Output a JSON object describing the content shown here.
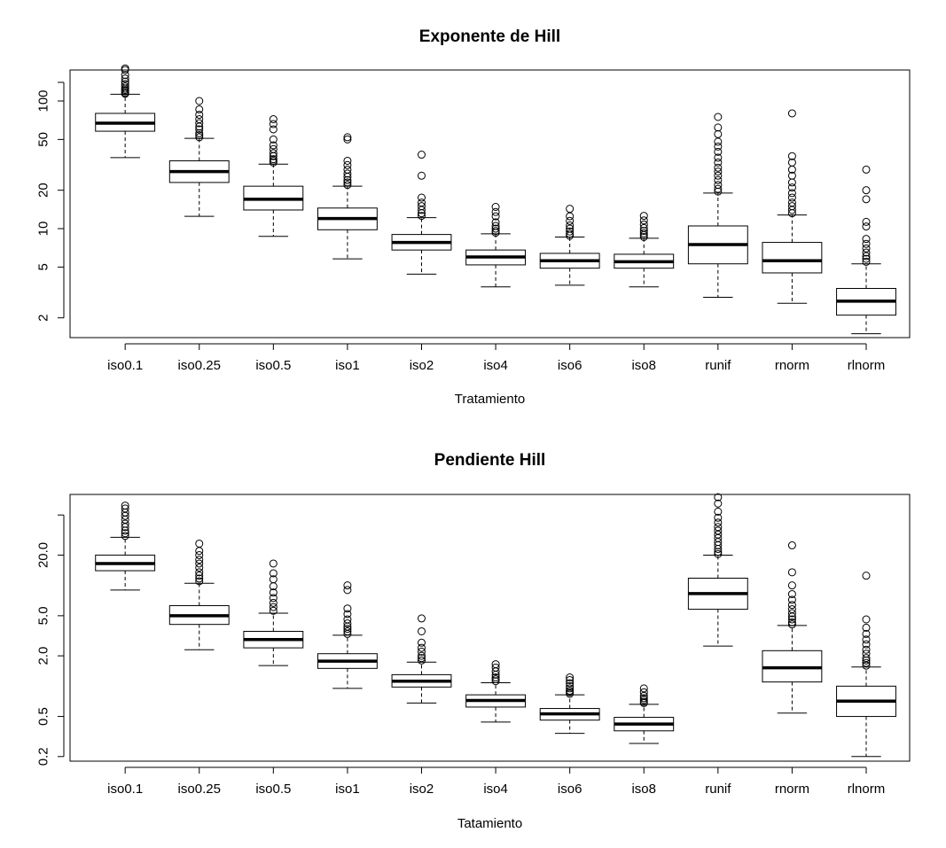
{
  "chart_data": [
    {
      "type": "boxplot",
      "title": "Exponente de Hill",
      "xlabel": "Tratamiento",
      "ylabel": "",
      "y_scale": "log",
      "ylim": [
        1.4,
        175
      ],
      "y_ticks": [
        2,
        5,
        10,
        20,
        50,
        100
      ],
      "categories": [
        "iso0.1",
        "iso0.25",
        "iso0.5",
        "iso1",
        "iso2",
        "iso4",
        "iso6",
        "iso8",
        "runif",
        "rnorm",
        "rlnorm"
      ],
      "boxes": [
        {
          "min": 36,
          "q1": 58,
          "median": 67,
          "q3": 80,
          "max": 113,
          "outliers": [
            114,
            116,
            119,
            122,
            125,
            130,
            136,
            142,
            150,
            160,
            175,
            180
          ]
        },
        {
          "min": 12.5,
          "q1": 23,
          "median": 28,
          "q3": 34,
          "max": 51,
          "outliers": [
            52,
            54,
            56,
            60,
            63,
            67,
            72,
            78,
            86,
            100
          ]
        },
        {
          "min": 8.7,
          "q1": 14,
          "median": 17,
          "q3": 21.5,
          "max": 32,
          "outliers": [
            33,
            34,
            35,
            37,
            39,
            42,
            45,
            50,
            60,
            66,
            72
          ]
        },
        {
          "min": 5.8,
          "q1": 9.8,
          "median": 12,
          "q3": 14.5,
          "max": 21.5,
          "outliers": [
            22,
            23,
            24,
            25.5,
            27,
            29,
            31.5,
            34,
            50,
            52
          ]
        },
        {
          "min": 4.4,
          "q1": 6.8,
          "median": 7.8,
          "q3": 9.0,
          "max": 12.2,
          "outliers": [
            12.6,
            13.2,
            14,
            15,
            16,
            17.5,
            26,
            38
          ]
        },
        {
          "min": 3.5,
          "q1": 5.2,
          "median": 6.0,
          "q3": 6.8,
          "max": 9.1,
          "outliers": [
            9.3,
            9.6,
            10,
            10.5,
            11.2,
            12.5,
            13.5,
            14.8
          ]
        },
        {
          "min": 3.6,
          "q1": 4.9,
          "median": 5.6,
          "q3": 6.4,
          "max": 8.6,
          "outliers": [
            8.8,
            9.1,
            9.5,
            10,
            10.6,
            11.5,
            12.5,
            14.3
          ]
        },
        {
          "min": 3.5,
          "q1": 4.9,
          "median": 5.5,
          "q3": 6.3,
          "max": 8.4,
          "outliers": [
            8.6,
            8.9,
            9.2,
            9.6,
            10.1,
            10.8,
            11.6,
            12.6
          ]
        },
        {
          "min": 2.9,
          "q1": 5.3,
          "median": 7.5,
          "q3": 10.5,
          "max": 19,
          "outliers": [
            19.5,
            20.5,
            22,
            24,
            26,
            28,
            30,
            33,
            36,
            40,
            44,
            48,
            55,
            62,
            75
          ]
        },
        {
          "min": 2.6,
          "q1": 4.5,
          "median": 5.6,
          "q3": 7.8,
          "max": 12.8,
          "outliers": [
            13.2,
            14,
            15,
            16,
            17.5,
            19,
            21,
            23,
            26,
            29,
            33,
            37,
            80
          ]
        },
        {
          "min": 1.5,
          "q1": 2.1,
          "median": 2.7,
          "q3": 3.4,
          "max": 5.3,
          "outliers": [
            5.5,
            5.8,
            6.1,
            6.5,
            7.0,
            7.6,
            8.3,
            10.4,
            11.3,
            17,
            20,
            29
          ]
        }
      ]
    },
    {
      "type": "boxplot",
      "title": "Pendiente Hill",
      "xlabel": "Tatamiento",
      "ylabel": "",
      "y_scale": "log",
      "ylim": [
        0.18,
        80
      ],
      "y_ticks": [
        0.2,
        0.5,
        2.0,
        5.0,
        20.0
      ],
      "y_tick_labels": [
        "0.2",
        "0.5",
        "2.0",
        "5.0",
        "20.0"
      ],
      "categories": [
        "iso0.1",
        "iso0.25",
        "iso0.5",
        "iso1",
        "iso2",
        "iso4",
        "iso6",
        "iso8",
        "runif",
        "rnorm",
        "rlnorm"
      ],
      "boxes": [
        {
          "min": 9.0,
          "q1": 14,
          "median": 16.5,
          "q3": 20,
          "max": 30,
          "outliers": [
            31,
            33,
            35,
            38,
            41,
            45,
            49,
            53,
            58,
            62
          ]
        },
        {
          "min": 2.3,
          "q1": 4.1,
          "median": 5.0,
          "q3": 6.3,
          "max": 10.5,
          "outliers": [
            11,
            11.7,
            12.5,
            13.5,
            15,
            16.5,
            18,
            20,
            22,
            26
          ]
        },
        {
          "min": 1.6,
          "q1": 2.4,
          "median": 2.9,
          "q3": 3.5,
          "max": 5.3,
          "outliers": [
            5.6,
            6.1,
            6.7,
            7.5,
            8.5,
            9.8,
            11.5,
            13.2,
            16.5
          ]
        },
        {
          "min": 0.95,
          "q1": 1.5,
          "median": 1.77,
          "q3": 2.1,
          "max": 3.2,
          "outliers": [
            3.3,
            3.5,
            3.7,
            3.9,
            4.2,
            4.6,
            5.2,
            5.9,
            9,
            10
          ]
        },
        {
          "min": 0.68,
          "q1": 0.98,
          "median": 1.12,
          "q3": 1.3,
          "max": 1.73,
          "outliers": [
            1.8,
            1.9,
            2.0,
            2.2,
            2.4,
            2.7,
            3.5,
            4.7
          ]
        },
        {
          "min": 0.44,
          "q1": 0.62,
          "median": 0.72,
          "q3": 0.82,
          "max": 1.08,
          "outliers": [
            1.12,
            1.17,
            1.22,
            1.3,
            1.4,
            1.53,
            1.65
          ]
        },
        {
          "min": 0.34,
          "q1": 0.46,
          "median": 0.53,
          "q3": 0.6,
          "max": 0.82,
          "outliers": [
            0.84,
            0.87,
            0.9,
            0.95,
            1.0,
            1.07,
            1.15,
            1.22
          ]
        },
        {
          "min": 0.27,
          "q1": 0.36,
          "median": 0.42,
          "q3": 0.49,
          "max": 0.66,
          "outliers": [
            0.68,
            0.7,
            0.73,
            0.76,
            0.8,
            0.87,
            0.95
          ]
        },
        {
          "min": 2.5,
          "q1": 5.8,
          "median": 8.3,
          "q3": 11.8,
          "max": 20,
          "outliers": [
            20.5,
            21.5,
            23,
            25,
            27,
            29.5,
            32,
            35,
            38,
            42,
            47,
            54,
            65,
            75
          ]
        },
        {
          "min": 0.54,
          "q1": 1.1,
          "median": 1.52,
          "q3": 2.25,
          "max": 4.0,
          "outliers": [
            4.1,
            4.3,
            4.6,
            4.9,
            5.3,
            5.8,
            6.4,
            7.2,
            8.2,
            10,
            13.5,
            25
          ]
        },
        {
          "min": 0.2,
          "q1": 0.5,
          "median": 0.71,
          "q3": 1.0,
          "max": 1.55,
          "outliers": [
            1.6,
            1.7,
            1.8,
            1.9,
            2.1,
            2.3,
            2.6,
            2.9,
            3.3,
            3.8,
            4.6,
            12.5
          ]
        }
      ]
    }
  ]
}
